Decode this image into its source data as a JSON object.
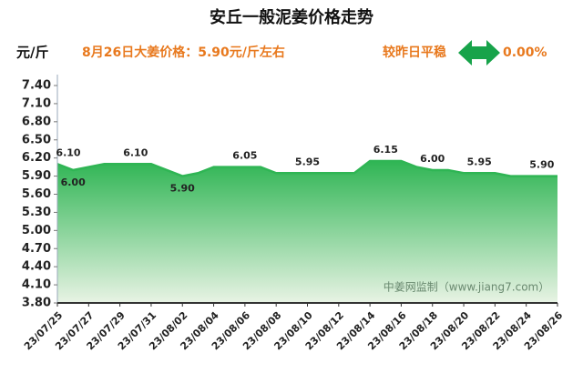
{
  "chart_data": {
    "type": "area",
    "title": "安丘一般泥姜价格走势",
    "y_label": "元/斤",
    "subtitle": "8月26日大姜价格：5.90元/斤左右",
    "compare_label": "较昨日平稳",
    "change": "0.00%",
    "watermark": "中姜网监制（www.jiang7.com）",
    "color": "#2fb554",
    "categories": [
      "23/07/25",
      null,
      "23/07/27",
      null,
      "23/07/29",
      null,
      "23/07/31",
      null,
      "23/08/02",
      null,
      "23/08/04",
      null,
      "23/08/06",
      null,
      "23/08/08",
      null,
      "23/08/10",
      null,
      "23/08/12",
      null,
      "23/08/14",
      null,
      "23/08/16",
      null,
      "23/08/18",
      null,
      "23/08/20",
      null,
      "23/08/22",
      null,
      "23/08/24",
      null,
      "23/08/26"
    ],
    "values": [
      6.1,
      6.0,
      6.05,
      6.1,
      6.1,
      6.1,
      6.1,
      6.0,
      5.9,
      5.95,
      6.05,
      6.05,
      6.05,
      6.05,
      5.95,
      5.95,
      5.95,
      5.95,
      5.95,
      5.95,
      6.15,
      6.15,
      6.15,
      6.05,
      6.0,
      6.0,
      5.95,
      5.95,
      5.95,
      5.9,
      5.9,
      5.9,
      5.9
    ],
    "value_labels": [
      "6.10",
      "6.00",
      null,
      null,
      null,
      "6.10",
      null,
      null,
      "5.90",
      null,
      null,
      null,
      "6.05",
      null,
      null,
      null,
      "5.95",
      null,
      null,
      null,
      null,
      "6.15",
      null,
      null,
      "6.00",
      null,
      null,
      "5.95",
      null,
      null,
      null,
      "5.90",
      null
    ],
    "ylim": [
      3.8,
      7.4
    ],
    "yticks": [
      {
        "value": 3.8,
        "label": "3.80"
      },
      {
        "value": 4.1,
        "label": "4.10"
      },
      {
        "value": 4.4,
        "label": "4.40"
      },
      {
        "value": 4.7,
        "label": "4.70"
      },
      {
        "value": 5.0,
        "label": "5.00"
      },
      {
        "value": 5.3,
        "label": "5.30"
      },
      {
        "value": 5.6,
        "label": "5.60"
      },
      {
        "value": 5.9,
        "label": "5.90"
      },
      {
        "value": 6.2,
        "label": "6.20"
      },
      {
        "value": 6.5,
        "label": "6.50"
      },
      {
        "value": 6.8,
        "label": "6.80"
      },
      {
        "value": 7.1,
        "label": "7.10"
      },
      {
        "value": 7.4,
        "label": "7.40"
      }
    ]
  }
}
